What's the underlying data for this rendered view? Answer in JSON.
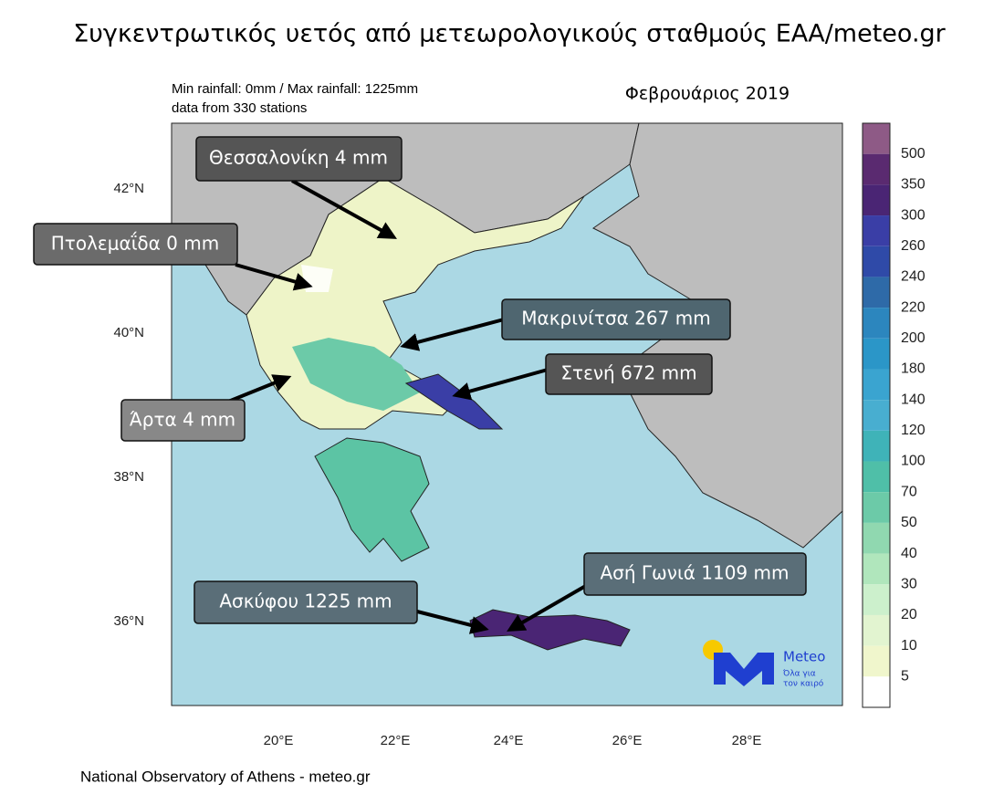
{
  "title": "Συγκεντρωτικός υετός από μετεωρολογικούς σταθμούς ΕΑΑ/meteo.gr",
  "info": {
    "line1": "Min rainfall: 0mm / Max rainfall: 1225mm",
    "line2": "data from 330 stations",
    "period": "Φεβρουάριος 2019"
  },
  "axes": {
    "x_labels": [
      "20°E",
      "22°E",
      "24°E",
      "26°E",
      "28°E"
    ],
    "y_labels": [
      "42°N",
      "40°N",
      "38°N",
      "36°N"
    ]
  },
  "colorbar": {
    "labels": [
      "500",
      "350",
      "300",
      "260",
      "240",
      "220",
      "200",
      "180",
      "140",
      "120",
      "100",
      "70",
      "50",
      "40",
      "30",
      "20",
      "10",
      "5"
    ],
    "colors": [
      "#8e5a86",
      "#5a2a70",
      "#4a2574",
      "#3a3ea6",
      "#2f4aa8",
      "#2e6aa8",
      "#2c86be",
      "#2b96c8",
      "#3aa4d0",
      "#48aed0",
      "#3fb3b8",
      "#4fbfa8",
      "#6ccaa8",
      "#90d8b0",
      "#b0e6bc",
      "#ccf0cc",
      "#e2f4d0",
      "#f0f6cc",
      "#ffffff"
    ]
  },
  "annotations": [
    "Θεσσαλονίκη 4 mm",
    "Πτολεμαΐδα 0 mm",
    "Μακρινίτσα 267 mm",
    "Στενή 672 mm",
    "Άρτα 4 mm",
    "Ασκύφου 1225 mm",
    "Ασή Γωνιά 1109 mm"
  ],
  "logo": {
    "name": "Meteo",
    "tagline1": "Όλα για",
    "tagline2": "τον καιρό"
  },
  "footer": "National Observatory of Athens - meteo.gr"
}
